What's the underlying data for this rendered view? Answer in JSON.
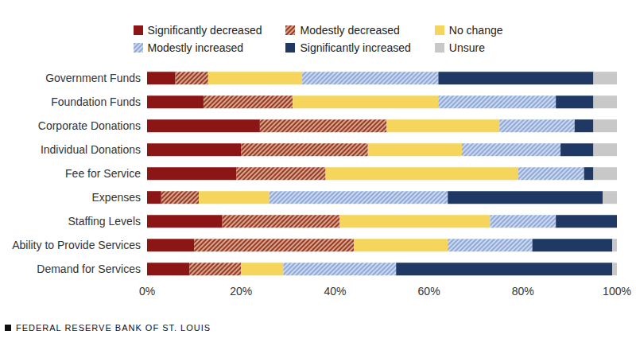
{
  "chart_data": {
    "type": "bar",
    "orientation": "horizontal",
    "stacked": true,
    "grid": false,
    "legend": "top",
    "source": "FEDERAL RESERVE BANK OF ST. LOUIS",
    "categories": [
      "Government Funds",
      "Foundation Funds",
      "Corporate Donations",
      "Individual Donations",
      "Fee for Service",
      "Expenses",
      "Staffing Levels",
      "Ability to Provide Services",
      "Demand for Services"
    ],
    "series": [
      {
        "name": "Significantly decreased",
        "color": "#8c1515",
        "values": [
          6,
          12,
          24,
          20,
          19,
          3,
          16,
          10,
          9
        ]
      },
      {
        "name": "Modestly decreased",
        "color": "#9c3a1a",
        "values": [
          7,
          19,
          27,
          27,
          19,
          8,
          25,
          34,
          11
        ]
      },
      {
        "name": "No change",
        "color": "#f6d55c",
        "values": [
          20,
          31,
          24,
          20,
          41,
          15,
          32,
          20,
          9
        ]
      },
      {
        "name": "Modestly increased",
        "color": "#8fa9d8",
        "values": [
          29,
          25,
          16,
          21,
          14,
          38,
          14,
          18,
          24
        ]
      },
      {
        "name": "Significantly increased",
        "color": "#1f3864",
        "values": [
          33,
          8,
          4,
          7,
          2,
          33,
          13,
          17,
          46
        ]
      },
      {
        "name": "Unsure",
        "color": "#c8c8c8",
        "values": [
          5,
          5,
          5,
          5,
          5,
          3,
          0,
          1,
          1
        ]
      }
    ],
    "xlim": [
      0,
      100
    ],
    "xticks": [
      {
        "value": 0,
        "label": "0%"
      },
      {
        "value": 20,
        "label": "20%"
      },
      {
        "value": 40,
        "label": "40%"
      },
      {
        "value": 60,
        "label": "60%"
      },
      {
        "value": 80,
        "label": "80%"
      },
      {
        "value": 100,
        "label": "100%"
      }
    ]
  }
}
